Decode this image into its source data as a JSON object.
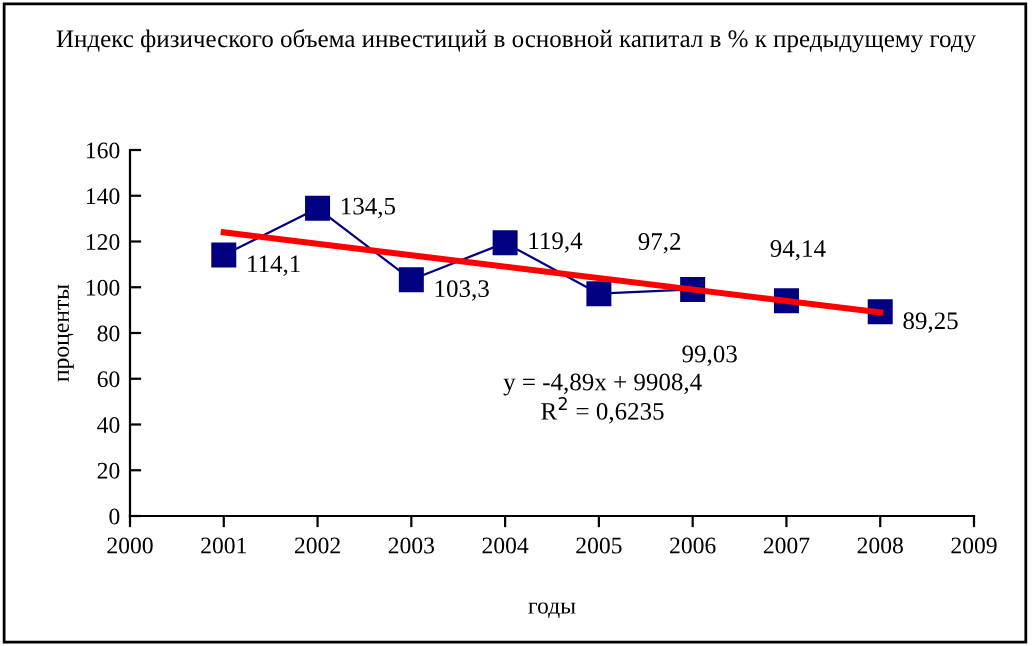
{
  "chart_data": {
    "type": "line",
    "title": "Индекс физического объема инвестиций в основной капитал в % к предыдущему году",
    "xlabel": "годы",
    "ylabel": "проценты",
    "x": [
      2001,
      2002,
      2003,
      2004,
      2005,
      2006,
      2007,
      2008
    ],
    "series": [
      {
        "color": "#000080",
        "marker": "square",
        "values": [
          114.1,
          134.5,
          103.3,
          119.4,
          97.2,
          99.03,
          94.14,
          89.25
        ],
        "value_labels": [
          "114,1",
          "134,5",
          "103,3",
          "119,4",
          "97,2",
          "99,03",
          "94,14",
          "89,25"
        ]
      },
      {
        "color": "#ff0000",
        "marker": "none",
        "x": [
          2001,
          2008
        ],
        "values": [
          124,
          89
        ]
      }
    ],
    "annotations": [
      "y = -4,89x + 9908,4",
      "R$^{2}$ = 0,6235"
    ],
    "xlim": [
      2000,
      2009
    ],
    "xticks": [
      2000,
      2001,
      2002,
      2003,
      2004,
      2005,
      2006,
      2007,
      2008,
      2009
    ],
    "ylim": [
      0,
      160
    ],
    "yticks": [
      0,
      20,
      40,
      60,
      80,
      100,
      120,
      140,
      160
    ],
    "grid": false,
    "legend": false
  }
}
